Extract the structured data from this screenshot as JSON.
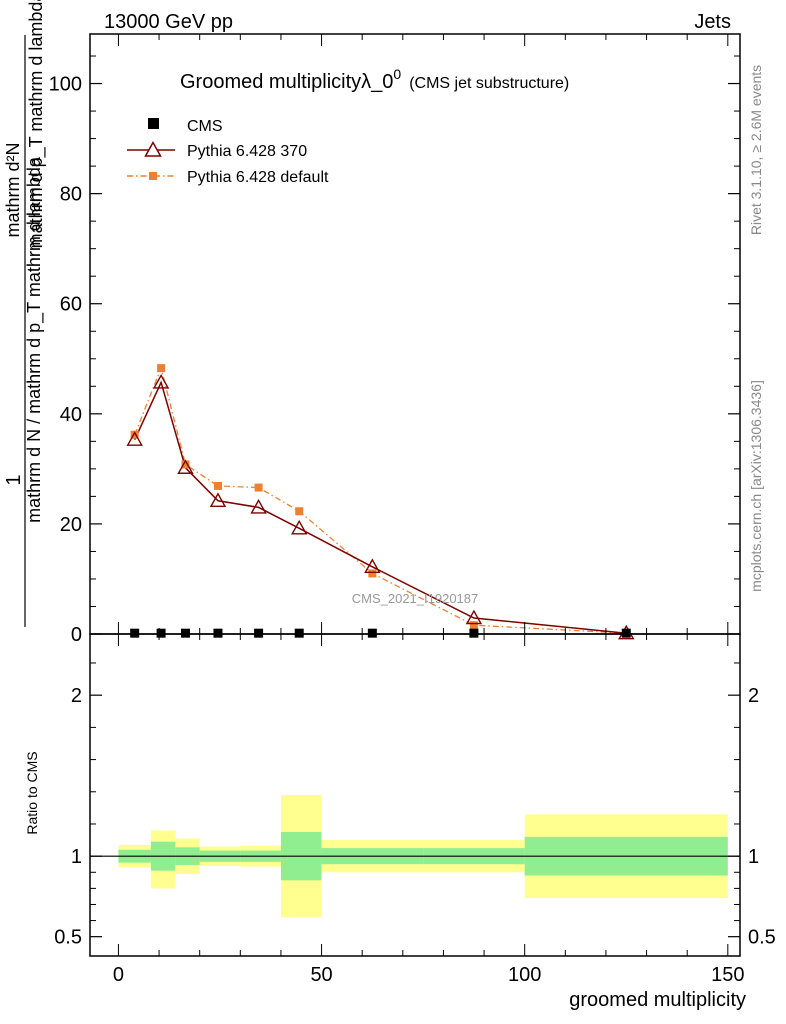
{
  "header": {
    "left": "13000 GeV pp",
    "right": "Jets"
  },
  "side_labels": {
    "rivet": "Rivet 3.1.10, ≥ 2.6M events",
    "mcplots": "mcplots.cern.ch [arXiv:1306.3436]"
  },
  "watermark": "CMS_2021_I1920187",
  "chart_data": [
    {
      "type": "line",
      "title": "Groomed multiplicityλ_0",
      "title_sup": "0",
      "subtitle": "(CMS jet substructure)",
      "ylabel_numerator": "1",
      "ylabel_denominator": "mathrm d N / mathrm d p_T mathrm d lambda",
      "ylabel_top": "mathrm d²N",
      "ylabel_bottom": "mathrm d p_T mathrm d lambda",
      "xlim": [
        -7,
        153
      ],
      "ylim": [
        0,
        109
      ],
      "yticks": [
        0,
        20,
        40,
        60,
        80,
        100
      ],
      "xticks": [
        0,
        50,
        100,
        150
      ],
      "legend_position": "top-left",
      "series": [
        {
          "name": "CMS",
          "color": "#000000",
          "marker": "square",
          "x": [
            4,
            10.5,
            16.5,
            24.5,
            34.5,
            44.5,
            62.5,
            87.5,
            125
          ],
          "y": [
            0.15,
            0.15,
            0.15,
            0.15,
            0.15,
            0.15,
            0.15,
            0.15,
            0.15
          ]
        },
        {
          "name": "Pythia 6.428 370",
          "color": "#800000",
          "marker": "open-triangle",
          "x": [
            4,
            10.5,
            16.5,
            24.5,
            34.5,
            44.5,
            62.5,
            87.5,
            125
          ],
          "y": [
            35.3,
            45.7,
            30.2,
            24.2,
            23.0,
            19.2,
            12.2,
            2.9,
            0.15
          ]
        },
        {
          "name": "Pythia 6.428 default",
          "color": "#f08030",
          "marker": "filled-square",
          "x": [
            4,
            10.5,
            16.5,
            24.5,
            34.5,
            44.5,
            62.5,
            87.5,
            125
          ],
          "y": [
            36.2,
            48.3,
            30.8,
            26.9,
            26.6,
            22.3,
            11.0,
            1.6,
            0.15
          ]
        }
      ]
    },
    {
      "type": "area",
      "ylabel": "Ratio to CMS",
      "xlabel": "groomed multiplicity",
      "xlim": [
        -7,
        153
      ],
      "ylim": [
        0.38,
        2.38
      ],
      "yticks": [
        0.5,
        1,
        2
      ],
      "xticks": [
        0,
        50,
        100,
        150
      ],
      "bands": {
        "inner_color": "#90ee90",
        "outer_color": "#ffff90",
        "bins": [
          {
            "x0": 0,
            "x1": 8,
            "inner": [
              0.96,
              1.04
            ],
            "outer": [
              0.93,
              1.07
            ]
          },
          {
            "x0": 8,
            "x1": 14,
            "inner": [
              0.91,
              1.09
            ],
            "outer": [
              0.8,
              1.16
            ]
          },
          {
            "x0": 14,
            "x1": 20,
            "inner": [
              0.945,
              1.055
            ],
            "outer": [
              0.89,
              1.11
            ]
          },
          {
            "x0": 20,
            "x1": 30,
            "inner": [
              0.965,
              1.035
            ],
            "outer": [
              0.94,
              1.06
            ]
          },
          {
            "x0": 30,
            "x1": 40,
            "inner": [
              0.965,
              1.035
            ],
            "outer": [
              0.935,
              1.065
            ]
          },
          {
            "x0": 40,
            "x1": 50,
            "inner": [
              0.85,
              1.15
            ],
            "outer": [
              0.62,
              1.38
            ]
          },
          {
            "x0": 50,
            "x1": 75,
            "inner": [
              0.95,
              1.05
            ],
            "outer": [
              0.9,
              1.1
            ]
          },
          {
            "x0": 75,
            "x1": 100,
            "inner": [
              0.95,
              1.05
            ],
            "outer": [
              0.9,
              1.1
            ]
          },
          {
            "x0": 100,
            "x1": 150,
            "inner": [
              0.88,
              1.12
            ],
            "outer": [
              0.74,
              1.26
            ]
          }
        ]
      }
    }
  ]
}
